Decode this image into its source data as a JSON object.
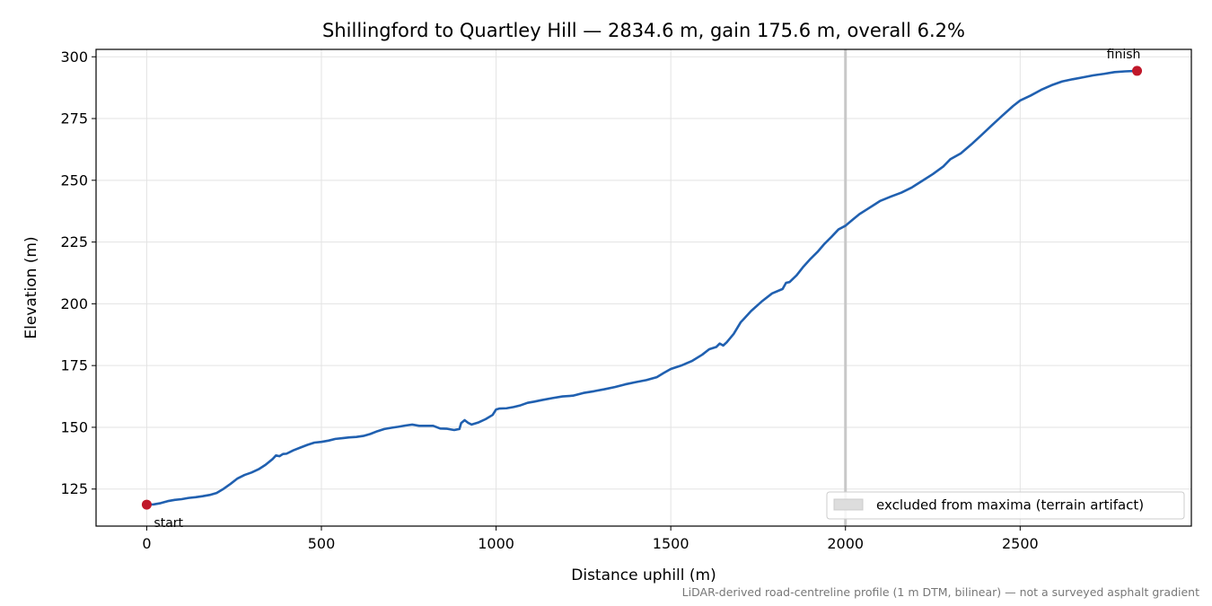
{
  "chart_data": {
    "type": "line",
    "title": "Shillingford to Quartley Hill — 2834.6 m, gain 175.6 m, overall 6.2%",
    "xlabel": "Distance uphill (m)",
    "ylabel": "Elevation (m)",
    "xlim": [
      -145,
      2990
    ],
    "ylim": [
      110,
      303
    ],
    "xticks": [
      0,
      500,
      1000,
      1500,
      2000,
      2500
    ],
    "yticks": [
      125,
      150,
      175,
      200,
      225,
      250,
      275,
      300
    ],
    "grid": true,
    "legend_position": "lower-right",
    "legend_label": "excluded from maxima (terrain artifact)",
    "excluded_x": 2000,
    "line_color": "#2060b0",
    "marker_color": "#c0182a",
    "band_color": "#c8c8c8",
    "series": [
      {
        "x": [
          0,
          20,
          40,
          60,
          80,
          100,
          120,
          140,
          160,
          180,
          200,
          220,
          240,
          260,
          280,
          300,
          320,
          340,
          360,
          370,
          380,
          390,
          400,
          420,
          440,
          460,
          480,
          500,
          520,
          540,
          560,
          580,
          600,
          620,
          640,
          660,
          680,
          700,
          720,
          740,
          760,
          780,
          800,
          820,
          840,
          860,
          880,
          895,
          900,
          905,
          910,
          920,
          930,
          950,
          970,
          990,
          1000,
          1010,
          1030,
          1050,
          1070,
          1090,
          1110,
          1130,
          1160,
          1190,
          1220,
          1250,
          1280,
          1310,
          1340,
          1370,
          1400,
          1430,
          1460,
          1480,
          1500,
          1530,
          1560,
          1590,
          1610,
          1630,
          1640,
          1650,
          1660,
          1680,
          1700,
          1710,
          1730,
          1760,
          1790,
          1820,
          1830,
          1840,
          1860,
          1880,
          1900,
          1920,
          1940,
          1960,
          1980,
          2000,
          2020,
          2040,
          2060,
          2080,
          2100,
          2130,
          2160,
          2190,
          2220,
          2250,
          2280,
          2300,
          2330,
          2360,
          2390,
          2420,
          2450,
          2480,
          2500,
          2530,
          2560,
          2590,
          2620,
          2650,
          2680,
          2710,
          2740,
          2770,
          2800,
          2834.6
        ],
        "y": [
          118.7,
          118.8,
          119.3,
          120.1,
          120.6,
          120.9,
          121.4,
          121.7,
          122.1,
          122.6,
          123.4,
          125.1,
          127.1,
          129.3,
          130.7,
          131.7,
          133.0,
          134.8,
          137.1,
          138.6,
          138.3,
          139.2,
          139.3,
          140.7,
          141.8,
          142.9,
          143.8,
          144.1,
          144.6,
          145.3,
          145.6,
          145.9,
          146.1,
          146.5,
          147.3,
          148.4,
          149.3,
          149.8,
          150.2,
          150.7,
          151.1,
          150.6,
          150.6,
          150.6,
          149.5,
          149.4,
          148.9,
          149.3,
          151.7,
          152.3,
          152.9,
          151.8,
          151.1,
          152.0,
          153.3,
          155.0,
          157.2,
          157.6,
          157.7,
          158.2,
          158.9,
          159.9,
          160.4,
          161.0,
          161.8,
          162.5,
          162.8,
          163.9,
          164.6,
          165.4,
          166.3,
          167.4,
          168.3,
          169.1,
          170.3,
          172.0,
          173.6,
          175.0,
          176.8,
          179.4,
          181.6,
          182.5,
          183.9,
          183.1,
          184.4,
          187.8,
          192.5,
          194.0,
          197.1,
          200.9,
          204.2,
          206.0,
          208.5,
          208.8,
          211.5,
          215.1,
          218.2,
          221.0,
          224.3,
          227.1,
          230.1,
          231.6,
          234.0,
          236.3,
          238.1,
          239.9,
          241.7,
          243.4,
          245.0,
          247.1,
          249.8,
          252.5,
          255.6,
          258.5,
          260.9,
          264.5,
          268.4,
          272.4,
          276.3,
          280.1,
          282.3,
          284.3,
          286.6,
          288.5,
          290.0,
          290.9,
          291.7,
          292.5,
          293.1,
          293.8,
          294.1,
          294.3
        ]
      }
    ],
    "markers": [
      {
        "label": "start",
        "x": 0,
        "y": 118.7
      },
      {
        "label": "finish",
        "x": 2834.6,
        "y": 294.3
      }
    ]
  },
  "footer": "LiDAR-derived road-centreline profile (1 m DTM, bilinear) — not a surveyed asphalt gradient"
}
